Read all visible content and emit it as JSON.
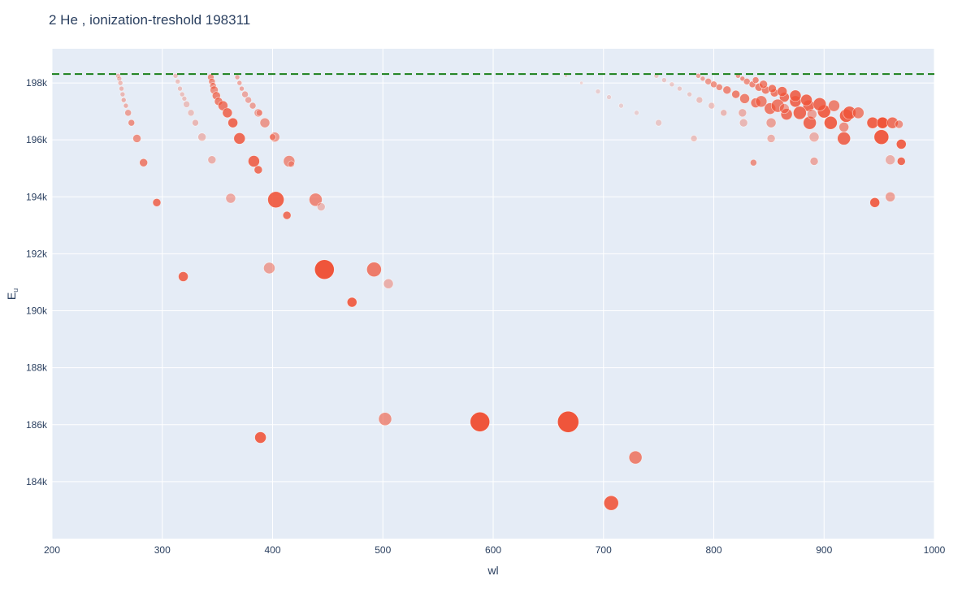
{
  "chart_data": {
    "type": "scatter",
    "title": "2 He , ionization-treshold 198311",
    "xlabel": "wl",
    "ylabel": "E",
    "ylabel_subscript": "u",
    "xlim": [
      200,
      1000
    ],
    "ylim": [
      182000,
      199200
    ],
    "x_ticks": [
      200,
      300,
      400,
      500,
      600,
      700,
      800,
      900,
      1000
    ],
    "x_tick_labels": [
      "200",
      "300",
      "400",
      "500",
      "600",
      "700",
      "800",
      "900",
      "1000"
    ],
    "y_ticks": [
      184000,
      186000,
      188000,
      190000,
      192000,
      194000,
      196000,
      198000
    ],
    "y_tick_labels": [
      "184k",
      "186k",
      "188k",
      "190k",
      "192k",
      "194k",
      "196k",
      "198k"
    ],
    "threshold": {
      "value": 198311,
      "style": "dashed",
      "color": "#1a7f1a"
    },
    "grid": true,
    "colors": {
      "marker": "#ef553b",
      "plot_bg": "#e5ecf6",
      "grid": "#ffffff",
      "text": "#2a3f5f"
    },
    "points": [
      {
        "wl": 260,
        "E": 198250,
        "s": 3,
        "o": 0.35
      },
      {
        "wl": 261,
        "E": 198150,
        "s": 3,
        "o": 0.35
      },
      {
        "wl": 262,
        "E": 198000,
        "s": 3,
        "o": 0.35
      },
      {
        "wl": 263,
        "E": 197800,
        "s": 3,
        "o": 0.35
      },
      {
        "wl": 264,
        "E": 197600,
        "s": 3,
        "o": 0.35
      },
      {
        "wl": 265,
        "E": 197400,
        "s": 3,
        "o": 0.4
      },
      {
        "wl": 267,
        "E": 197200,
        "s": 3,
        "o": 0.4
      },
      {
        "wl": 269,
        "E": 196950,
        "s": 4,
        "o": 0.5
      },
      {
        "wl": 272,
        "E": 196600,
        "s": 4,
        "o": 0.6
      },
      {
        "wl": 277,
        "E": 196050,
        "s": 5,
        "o": 0.6
      },
      {
        "wl": 283,
        "E": 195200,
        "s": 5,
        "o": 0.7
      },
      {
        "wl": 295,
        "E": 193800,
        "s": 5,
        "o": 0.8
      },
      {
        "wl": 319,
        "E": 191200,
        "s": 6,
        "o": 0.85
      },
      {
        "wl": 312,
        "E": 198250,
        "s": 3,
        "o": 0.3
      },
      {
        "wl": 314,
        "E": 198050,
        "s": 3,
        "o": 0.3
      },
      {
        "wl": 316,
        "E": 197800,
        "s": 3,
        "o": 0.3
      },
      {
        "wl": 318,
        "E": 197600,
        "s": 3,
        "o": 0.3
      },
      {
        "wl": 320,
        "E": 197450,
        "s": 3,
        "o": 0.3
      },
      {
        "wl": 322,
        "E": 197250,
        "s": 4,
        "o": 0.3
      },
      {
        "wl": 326,
        "E": 196950,
        "s": 4,
        "o": 0.3
      },
      {
        "wl": 330,
        "E": 196600,
        "s": 4,
        "o": 0.35
      },
      {
        "wl": 336,
        "E": 196100,
        "s": 5,
        "o": 0.35
      },
      {
        "wl": 345,
        "E": 195300,
        "s": 5,
        "o": 0.4
      },
      {
        "wl": 362,
        "E": 193950,
        "s": 6,
        "o": 0.45
      },
      {
        "wl": 397,
        "E": 191500,
        "s": 7,
        "o": 0.5
      },
      {
        "wl": 502,
        "E": 186200,
        "s": 8,
        "o": 0.6
      },
      {
        "wl": 344,
        "E": 198200,
        "s": 4,
        "o": 0.6
      },
      {
        "wl": 345,
        "E": 198050,
        "s": 4,
        "o": 0.6
      },
      {
        "wl": 346,
        "E": 197900,
        "s": 4,
        "o": 0.6
      },
      {
        "wl": 347,
        "E": 197750,
        "s": 5,
        "o": 0.6
      },
      {
        "wl": 349,
        "E": 197550,
        "s": 5,
        "o": 0.7
      },
      {
        "wl": 351,
        "E": 197350,
        "s": 5,
        "o": 0.7
      },
      {
        "wl": 355,
        "E": 197200,
        "s": 6,
        "o": 0.75
      },
      {
        "wl": 359,
        "E": 196950,
        "s": 6,
        "o": 0.8
      },
      {
        "wl": 364,
        "E": 196600,
        "s": 6,
        "o": 0.85
      },
      {
        "wl": 370,
        "E": 196050,
        "s": 7,
        "o": 0.85
      },
      {
        "wl": 383,
        "E": 195250,
        "s": 7,
        "o": 0.85
      },
      {
        "wl": 403,
        "E": 193900,
        "s": 10,
        "o": 0.9
      },
      {
        "wl": 447,
        "E": 191450,
        "s": 12,
        "o": 1
      },
      {
        "wl": 588,
        "E": 186100,
        "s": 12,
        "o": 1
      },
      {
        "wl": 368,
        "E": 198200,
        "s": 3,
        "o": 0.45
      },
      {
        "wl": 370,
        "E": 198000,
        "s": 3,
        "o": 0.45
      },
      {
        "wl": 372,
        "E": 197800,
        "s": 3,
        "o": 0.45
      },
      {
        "wl": 375,
        "E": 197600,
        "s": 4,
        "o": 0.45
      },
      {
        "wl": 378,
        "E": 197400,
        "s": 4,
        "o": 0.45
      },
      {
        "wl": 382,
        "E": 197200,
        "s": 4,
        "o": 0.5
      },
      {
        "wl": 387,
        "E": 196950,
        "s": 5,
        "o": 0.5
      },
      {
        "wl": 393,
        "E": 196600,
        "s": 6,
        "o": 0.55
      },
      {
        "wl": 402,
        "E": 196100,
        "s": 6,
        "o": 0.55
      },
      {
        "wl": 415,
        "E": 195250,
        "s": 7,
        "o": 0.6
      },
      {
        "wl": 439,
        "E": 193900,
        "s": 8,
        "o": 0.65
      },
      {
        "wl": 492,
        "E": 191450,
        "s": 9,
        "o": 0.75
      },
      {
        "wl": 668,
        "E": 186100,
        "s": 13,
        "o": 1
      },
      {
        "wl": 388,
        "E": 196950,
        "s": 4,
        "o": 0.4
      },
      {
        "wl": 400,
        "E": 196100,
        "s": 4,
        "o": 0.5
      },
      {
        "wl": 417,
        "E": 195150,
        "s": 4,
        "o": 0.35
      },
      {
        "wl": 387,
        "E": 194950,
        "s": 5,
        "o": 0.8
      },
      {
        "wl": 413,
        "E": 193350,
        "s": 5,
        "o": 0.8
      },
      {
        "wl": 444,
        "E": 193650,
        "s": 5,
        "o": 0.35
      },
      {
        "wl": 472,
        "E": 190300,
        "s": 6,
        "o": 0.9
      },
      {
        "wl": 505,
        "E": 190950,
        "s": 6,
        "o": 0.4
      },
      {
        "wl": 389,
        "E": 185550,
        "s": 7,
        "o": 0.9
      },
      {
        "wl": 707,
        "E": 183250,
        "s": 9,
        "o": 0.9
      },
      {
        "wl": 729,
        "E": 184850,
        "s": 8,
        "o": 0.7
      },
      {
        "wl": 666,
        "E": 198250,
        "s": 2,
        "o": 0.2
      },
      {
        "wl": 680,
        "E": 198000,
        "s": 2,
        "o": 0.2
      },
      {
        "wl": 695,
        "E": 197700,
        "s": 3,
        "o": 0.2
      },
      {
        "wl": 705,
        "E": 197500,
        "s": 3,
        "o": 0.2
      },
      {
        "wl": 716,
        "E": 197200,
        "s": 3,
        "o": 0.2
      },
      {
        "wl": 730,
        "E": 196950,
        "s": 3,
        "o": 0.2
      },
      {
        "wl": 750,
        "E": 196600,
        "s": 4,
        "o": 0.25
      },
      {
        "wl": 782,
        "E": 196050,
        "s": 4,
        "o": 0.3
      },
      {
        "wl": 836,
        "E": 195200,
        "s": 4,
        "o": 0.6
      },
      {
        "wl": 946,
        "E": 193800,
        "s": 6,
        "o": 0.9
      },
      {
        "wl": 748,
        "E": 198250,
        "s": 3,
        "o": 0.25
      },
      {
        "wl": 755,
        "E": 198100,
        "s": 3,
        "o": 0.25
      },
      {
        "wl": 762,
        "E": 197950,
        "s": 3,
        "o": 0.25
      },
      {
        "wl": 769,
        "E": 197800,
        "s": 3,
        "o": 0.25
      },
      {
        "wl": 778,
        "E": 197600,
        "s": 3,
        "o": 0.25
      },
      {
        "wl": 787,
        "E": 197400,
        "s": 4,
        "o": 0.3
      },
      {
        "wl": 798,
        "E": 197200,
        "s": 4,
        "o": 0.3
      },
      {
        "wl": 809,
        "E": 196950,
        "s": 4,
        "o": 0.35
      },
      {
        "wl": 827,
        "E": 196600,
        "s": 5,
        "o": 0.35
      },
      {
        "wl": 852,
        "E": 196050,
        "s": 5,
        "o": 0.4
      },
      {
        "wl": 891,
        "E": 195250,
        "s": 5,
        "o": 0.45
      },
      {
        "wl": 960,
        "E": 194000,
        "s": 6,
        "o": 0.5
      },
      {
        "wl": 786,
        "E": 198250,
        "s": 3,
        "o": 0.5
      },
      {
        "wl": 790,
        "E": 198150,
        "s": 3,
        "o": 0.5
      },
      {
        "wl": 795,
        "E": 198050,
        "s": 4,
        "o": 0.55
      },
      {
        "wl": 800,
        "E": 197950,
        "s": 4,
        "o": 0.6
      },
      {
        "wl": 805,
        "E": 197850,
        "s": 4,
        "o": 0.6
      },
      {
        "wl": 812,
        "E": 197750,
        "s": 5,
        "o": 0.65
      },
      {
        "wl": 820,
        "E": 197600,
        "s": 5,
        "o": 0.7
      },
      {
        "wl": 828,
        "E": 197450,
        "s": 6,
        "o": 0.7
      },
      {
        "wl": 838,
        "E": 197300,
        "s": 6,
        "o": 0.75
      },
      {
        "wl": 851,
        "E": 197100,
        "s": 7,
        "o": 0.75
      },
      {
        "wl": 866,
        "E": 196900,
        "s": 7,
        "o": 0.8
      },
      {
        "wl": 887,
        "E": 196600,
        "s": 8,
        "o": 0.85
      },
      {
        "wl": 918,
        "E": 196050,
        "s": 8,
        "o": 0.85
      },
      {
        "wl": 970,
        "E": 195250,
        "s": 5,
        "o": 0.85
      },
      {
        "wl": 822,
        "E": 198250,
        "s": 3,
        "o": 0.55
      },
      {
        "wl": 826,
        "E": 198150,
        "s": 3,
        "o": 0.6
      },
      {
        "wl": 830,
        "E": 198050,
        "s": 4,
        "o": 0.6
      },
      {
        "wl": 835,
        "E": 197950,
        "s": 4,
        "o": 0.65
      },
      {
        "wl": 841,
        "E": 197850,
        "s": 5,
        "o": 0.7
      },
      {
        "wl": 847,
        "E": 197750,
        "s": 5,
        "o": 0.7
      },
      {
        "wl": 855,
        "E": 197650,
        "s": 5,
        "o": 0.75
      },
      {
        "wl": 864,
        "E": 197500,
        "s": 6,
        "o": 0.8
      },
      {
        "wl": 874,
        "E": 197350,
        "s": 7,
        "o": 0.85
      },
      {
        "wl": 886,
        "E": 197200,
        "s": 7,
        "o": 0.85
      },
      {
        "wl": 900,
        "E": 197000,
        "s": 8,
        "o": 0.9
      },
      {
        "wl": 920,
        "E": 196850,
        "s": 8,
        "o": 0.9
      },
      {
        "wl": 944,
        "E": 196600,
        "s": 7,
        "o": 0.9
      },
      {
        "wl": 953,
        "E": 196600,
        "s": 7,
        "o": 1
      },
      {
        "wl": 962,
        "E": 196600,
        "s": 7,
        "o": 0.8
      },
      {
        "wl": 968,
        "E": 196550,
        "s": 5,
        "o": 0.6
      },
      {
        "wl": 952,
        "E": 196100,
        "s": 9,
        "o": 0.95
      },
      {
        "wl": 906,
        "E": 196600,
        "s": 8,
        "o": 0.9
      },
      {
        "wl": 970,
        "E": 195850,
        "s": 6,
        "o": 0.9
      },
      {
        "wl": 838,
        "E": 198100,
        "s": 4,
        "o": 0.65
      },
      {
        "wl": 845,
        "E": 197950,
        "s": 5,
        "o": 0.7
      },
      {
        "wl": 853,
        "E": 197800,
        "s": 5,
        "o": 0.75
      },
      {
        "wl": 862,
        "E": 197700,
        "s": 6,
        "o": 0.8
      },
      {
        "wl": 874,
        "E": 197550,
        "s": 7,
        "o": 0.85
      },
      {
        "wl": 884,
        "E": 197400,
        "s": 7,
        "o": 0.85
      },
      {
        "wl": 896,
        "E": 197250,
        "s": 8,
        "o": 0.85
      },
      {
        "wl": 909,
        "E": 197200,
        "s": 7,
        "o": 0.7
      },
      {
        "wl": 923,
        "E": 196950,
        "s": 8,
        "o": 0.85
      },
      {
        "wl": 931,
        "E": 196950,
        "s": 7,
        "o": 0.7
      },
      {
        "wl": 878,
        "E": 196950,
        "s": 8,
        "o": 0.85
      },
      {
        "wl": 889,
        "E": 196900,
        "s": 6,
        "o": 0.5
      },
      {
        "wl": 858,
        "E": 197200,
        "s": 8,
        "o": 0.75
      },
      {
        "wl": 864,
        "E": 197100,
        "s": 6,
        "o": 0.5
      },
      {
        "wl": 843,
        "E": 197350,
        "s": 7,
        "o": 0.7
      },
      {
        "wl": 826,
        "E": 196950,
        "s": 5,
        "o": 0.4
      },
      {
        "wl": 852,
        "E": 196600,
        "s": 6,
        "o": 0.5
      },
      {
        "wl": 918,
        "E": 196450,
        "s": 6,
        "o": 0.6
      },
      {
        "wl": 891,
        "E": 196100,
        "s": 6,
        "o": 0.4
      },
      {
        "wl": 960,
        "E": 195300,
        "s": 6,
        "o": 0.4
      }
    ]
  }
}
